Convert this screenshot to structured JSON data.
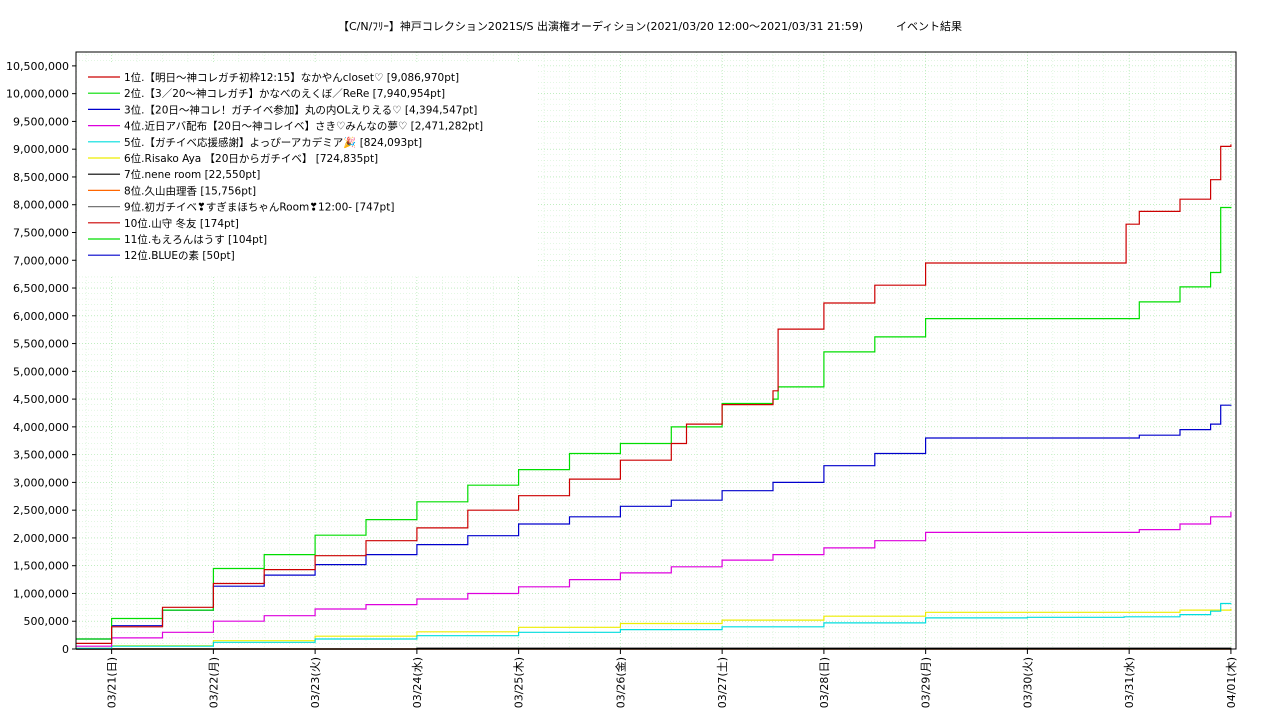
{
  "chart_data": {
    "type": "line",
    "title": "【C/N/ﾌﾘｰ】神戸コレクション2021S/S 出演権オーディション(2021/03/20 12:00～2021/03/31 21:59)　　　イベント結果",
    "xlabel": "",
    "ylabel": "",
    "x_tick_labels": [
      "03/21(日)",
      "03/22(月)",
      "03/23(火)",
      "03/24(水)",
      "03/25(木)",
      "03/26(金)",
      "03/27(土)",
      "03/28(日)",
      "03/29(月)",
      "03/30(火)",
      "03/31(水)",
      "04/01(木)"
    ],
    "x_range_days": [
      -0.35,
      11.05
    ],
    "ylim": [
      0,
      10750000
    ],
    "y_ticks": [
      0,
      500000,
      1000000,
      1500000,
      2000000,
      2500000,
      3000000,
      3500000,
      4000000,
      4500000,
      5000000,
      5500000,
      6000000,
      6500000,
      7000000,
      7500000,
      8000000,
      8500000,
      9000000,
      9500000,
      10000000,
      10500000
    ],
    "y_tick_labels": [
      "0",
      "500,000",
      "1,000,000",
      "1,500,000",
      "2,000,000",
      "2,500,000",
      "3,000,000",
      "3,500,000",
      "4,000,000",
      "4,500,000",
      "5,000,000",
      "5,500,000",
      "6,000,000",
      "6,500,000",
      "7,000,000",
      "7,500,000",
      "8,000,000",
      "8,500,000",
      "9,000,000",
      "9,500,000",
      "10,000,000",
      "10,500,000"
    ],
    "grid": true,
    "legend_position": "top-left",
    "series": [
      {
        "name": "1位.【明日～神コレガチ初枠12:15】なかやんcloset♡ [9,086,970pt]",
        "color": "#cc0000",
        "points": [
          [
            -0.35,
            100000
          ],
          [
            0.0,
            400000
          ],
          [
            0.5,
            750000
          ],
          [
            1.0,
            1180000
          ],
          [
            1.5,
            1430000
          ],
          [
            2.0,
            1680000
          ],
          [
            2.5,
            1950000
          ],
          [
            3.0,
            2180000
          ],
          [
            3.5,
            2500000
          ],
          [
            4.0,
            2760000
          ],
          [
            4.5,
            3060000
          ],
          [
            5.0,
            3400000
          ],
          [
            5.5,
            3700000
          ],
          [
            5.65,
            4050000
          ],
          [
            6.0,
            4400000
          ],
          [
            6.5,
            4650000
          ],
          [
            6.55,
            5760000
          ],
          [
            7.0,
            6230000
          ],
          [
            7.5,
            6550000
          ],
          [
            8.0,
            6950000
          ],
          [
            9.0,
            6950000
          ],
          [
            9.95,
            6950000
          ],
          [
            9.97,
            7650000
          ],
          [
            10.1,
            7880000
          ],
          [
            10.5,
            8100000
          ],
          [
            10.8,
            8450000
          ],
          [
            10.9,
            9050000
          ],
          [
            11.0,
            9086970
          ]
        ]
      },
      {
        "name": "2位.【3／20～神コレガチ】かなべのえくぼ／ReRe [7,940,954pt]",
        "color": "#00dd00",
        "points": [
          [
            -0.35,
            180000
          ],
          [
            0.0,
            550000
          ],
          [
            0.5,
            700000
          ],
          [
            1.0,
            1450000
          ],
          [
            1.5,
            1700000
          ],
          [
            2.0,
            2050000
          ],
          [
            2.5,
            2330000
          ],
          [
            3.0,
            2650000
          ],
          [
            3.5,
            2950000
          ],
          [
            4.0,
            3230000
          ],
          [
            4.5,
            3520000
          ],
          [
            5.0,
            3700000
          ],
          [
            5.5,
            4000000
          ],
          [
            6.0,
            4420000
          ],
          [
            6.5,
            4500000
          ],
          [
            6.55,
            4720000
          ],
          [
            7.0,
            5350000
          ],
          [
            7.5,
            5620000
          ],
          [
            8.0,
            5950000
          ],
          [
            9.0,
            5950000
          ],
          [
            9.95,
            5950000
          ],
          [
            10.1,
            6250000
          ],
          [
            10.5,
            6520000
          ],
          [
            10.8,
            6780000
          ],
          [
            10.9,
            7950000
          ],
          [
            11.0,
            7940954
          ]
        ]
      },
      {
        "name": "3位.【20日～神コレ！ガチイベ参加】丸の内OLえりえる♡ [4,394,547pt]",
        "color": "#0000cc",
        "points": [
          [
            -0.35,
            180000
          ],
          [
            0.0,
            420000
          ],
          [
            0.5,
            700000
          ],
          [
            1.0,
            1130000
          ],
          [
            1.5,
            1330000
          ],
          [
            2.0,
            1520000
          ],
          [
            2.5,
            1700000
          ],
          [
            3.0,
            1880000
          ],
          [
            3.5,
            2040000
          ],
          [
            4.0,
            2250000
          ],
          [
            4.5,
            2380000
          ],
          [
            5.0,
            2570000
          ],
          [
            5.5,
            2680000
          ],
          [
            6.0,
            2850000
          ],
          [
            6.5,
            3000000
          ],
          [
            7.0,
            3300000
          ],
          [
            7.5,
            3520000
          ],
          [
            8.0,
            3800000
          ],
          [
            9.0,
            3800000
          ],
          [
            9.95,
            3800000
          ],
          [
            10.1,
            3850000
          ],
          [
            10.5,
            3950000
          ],
          [
            10.8,
            4050000
          ],
          [
            10.9,
            4390000
          ],
          [
            11.0,
            4394547
          ]
        ]
      },
      {
        "name": "4位.近日アバ配布【20日～神コレイベ】さき♡みんなの夢♡ [2,471,282pt]",
        "color": "#dd00dd",
        "points": [
          [
            -0.35,
            50000
          ],
          [
            0.0,
            200000
          ],
          [
            0.5,
            300000
          ],
          [
            1.0,
            500000
          ],
          [
            1.5,
            600000
          ],
          [
            2.0,
            720000
          ],
          [
            2.5,
            800000
          ],
          [
            3.0,
            900000
          ],
          [
            3.5,
            1000000
          ],
          [
            4.0,
            1120000
          ],
          [
            4.5,
            1250000
          ],
          [
            5.0,
            1370000
          ],
          [
            5.5,
            1480000
          ],
          [
            6.0,
            1600000
          ],
          [
            6.5,
            1700000
          ],
          [
            7.0,
            1820000
          ],
          [
            7.5,
            1950000
          ],
          [
            8.0,
            2100000
          ],
          [
            9.0,
            2100000
          ],
          [
            9.95,
            2100000
          ],
          [
            10.1,
            2150000
          ],
          [
            10.5,
            2250000
          ],
          [
            10.8,
            2380000
          ],
          [
            11.0,
            2471282
          ]
        ]
      },
      {
        "name": "5位.【ガチイベ応援感謝】よっぴーアカデミア🎉 [824,093pt]",
        "color": "#00dddd",
        "points": [
          [
            -0.35,
            10000
          ],
          [
            0.0,
            50000
          ],
          [
            1.0,
            120000
          ],
          [
            2.0,
            180000
          ],
          [
            3.0,
            240000
          ],
          [
            4.0,
            300000
          ],
          [
            5.0,
            350000
          ],
          [
            6.0,
            400000
          ],
          [
            7.0,
            470000
          ],
          [
            8.0,
            560000
          ],
          [
            9.0,
            570000
          ],
          [
            9.95,
            580000
          ],
          [
            10.5,
            620000
          ],
          [
            10.8,
            680000
          ],
          [
            10.9,
            820000
          ],
          [
            11.0,
            824093
          ]
        ]
      },
      {
        "name": "6位.Risako Aya 【20日からガチイベ】 [724,835pt]",
        "color": "#eeee00",
        "points": [
          [
            -0.35,
            10000
          ],
          [
            0.0,
            60000
          ],
          [
            1.0,
            150000
          ],
          [
            2.0,
            230000
          ],
          [
            3.0,
            310000
          ],
          [
            4.0,
            390000
          ],
          [
            5.0,
            460000
          ],
          [
            6.0,
            520000
          ],
          [
            7.0,
            590000
          ],
          [
            8.0,
            660000
          ],
          [
            9.0,
            660000
          ],
          [
            9.95,
            660000
          ],
          [
            10.5,
            700000
          ],
          [
            11.0,
            724835
          ]
        ]
      },
      {
        "name": "7位.nene room [22,550pt]",
        "color": "#000000",
        "points": [
          [
            -0.35,
            0
          ],
          [
            3.0,
            15000
          ],
          [
            11.0,
            22550
          ]
        ]
      },
      {
        "name": "8位.久山由理香 [15,756pt]",
        "color": "#ff6600",
        "points": [
          [
            -0.35,
            0
          ],
          [
            11.0,
            15756
          ]
        ]
      },
      {
        "name": "9位.初ガチイベ❣すぎまほちゃんRoom❣12:00- [747pt]",
        "color": "#777777",
        "points": [
          [
            -0.35,
            0
          ],
          [
            11.0,
            747
          ]
        ]
      },
      {
        "name": "10位.山守 冬友 [174pt]",
        "color": "#cc0000",
        "points": [
          [
            -0.35,
            0
          ],
          [
            11.0,
            174
          ]
        ]
      },
      {
        "name": "11位.もえろんはうす [104pt]",
        "color": "#00dd00",
        "points": [
          [
            -0.35,
            0
          ],
          [
            11.0,
            104
          ]
        ]
      },
      {
        "name": "12位.BLUEの素 [50pt]",
        "color": "#0000cc",
        "points": [
          [
            -0.35,
            0
          ],
          [
            11.0,
            50
          ]
        ]
      }
    ]
  }
}
